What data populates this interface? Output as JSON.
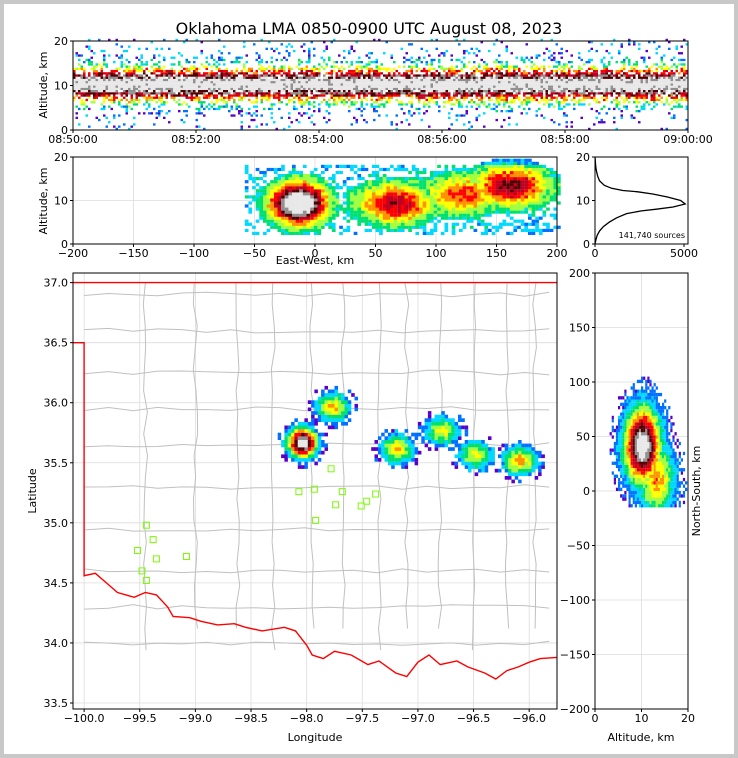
{
  "figure": {
    "title": "Oklahoma LMA 0850-0900 UTC August 08, 2023"
  },
  "colors": {
    "density_ramp": [
      "#5a00c8",
      "#0070ff",
      "#00d8ff",
      "#00e070",
      "#a0ff40",
      "#ffff00",
      "#ff9000",
      "#ff0000",
      "#c00020",
      "#500000",
      "#909090",
      "#e8e8e8"
    ],
    "state_border": "#ff0000",
    "county_lines": "#c0c0c0",
    "station_marker": "#7cfc00"
  },
  "chart_data": [
    {
      "id": "time-height",
      "type": "heatmap",
      "xlabel": "",
      "ylabel": "Altitude, km",
      "xlim": [
        "08:50:00",
        "09:00:00"
      ],
      "ylim": [
        0,
        20
      ],
      "x_ticks": [
        "08:50:00",
        "08:52:00",
        "08:54:00",
        "08:56:00",
        "08:58:00",
        "09:00:00"
      ],
      "y_ticks": [
        "0",
        "10",
        "20"
      ],
      "peak_altitude_km": 10
    },
    {
      "id": "ew-height",
      "type": "heatmap",
      "xlabel": "East-West, km",
      "ylabel": "Altitude, km",
      "xlim": [
        -200,
        200
      ],
      "ylim": [
        0,
        20
      ],
      "x_ticks": [
        "−200",
        "−150",
        "−100",
        "−50",
        "0",
        "50",
        "100",
        "150",
        "200"
      ],
      "y_ticks": [
        "0",
        "10",
        "20"
      ],
      "grid": true,
      "cores": [
        {
          "x_km": -15,
          "alt_km": 9,
          "intensity": 1.0
        },
        {
          "x_km": 65,
          "alt_km": 9,
          "intensity": 0.55
        },
        {
          "x_km": 120,
          "alt_km": 11,
          "intensity": 0.45
        },
        {
          "x_km": 160,
          "alt_km": 13,
          "intensity": 0.6
        }
      ]
    },
    {
      "id": "altitude-histogram",
      "type": "line",
      "xlim": [
        0,
        5000
      ],
      "ylim": [
        0,
        20
      ],
      "x_ticks": [
        "0",
        "5000"
      ],
      "y_ticks": [
        "0",
        "10",
        "20"
      ],
      "annotation": "141,740 sources",
      "points": [
        [
          0,
          0
        ],
        [
          50,
          1
        ],
        [
          120,
          2
        ],
        [
          250,
          3
        ],
        [
          450,
          4
        ],
        [
          750,
          5
        ],
        [
          1150,
          6
        ],
        [
          1700,
          7
        ],
        [
          2500,
          7.6
        ],
        [
          3300,
          8
        ],
        [
          4200,
          8.5
        ],
        [
          4850,
          9.2
        ],
        [
          4600,
          10
        ],
        [
          3900,
          10.8
        ],
        [
          3100,
          11.5
        ],
        [
          2300,
          12
        ],
        [
          1500,
          12.3
        ],
        [
          900,
          12.8
        ],
        [
          500,
          13.5
        ],
        [
          250,
          14.5
        ],
        [
          150,
          15.5
        ],
        [
          90,
          16.5
        ],
        [
          50,
          17.5
        ],
        [
          25,
          18.5
        ],
        [
          10,
          19.5
        ],
        [
          0,
          20
        ]
      ]
    },
    {
      "id": "plan-view",
      "type": "heatmap",
      "xlabel": "Longitude",
      "ylabel": "Latitude",
      "xlim": [
        -100.1,
        -95.75
      ],
      "ylim": [
        33.45,
        37.08
      ],
      "x_ticks": [
        "−100.0",
        "−99.5",
        "−99.0",
        "−98.5",
        "−98.0",
        "−97.5",
        "−97.0",
        "−96.5",
        "−96.0"
      ],
      "y_ticks": [
        "33.5",
        "34.0",
        "34.5",
        "35.0",
        "35.5",
        "36.0",
        "36.5",
        "37.0"
      ],
      "grid": true,
      "cores": [
        {
          "lon": -98.05,
          "lat": 35.65,
          "intensity": 1.0
        },
        {
          "lon": -97.78,
          "lat": 35.95,
          "intensity": 0.45
        },
        {
          "lon": -97.2,
          "lat": 35.6,
          "intensity": 0.45
        },
        {
          "lon": -96.8,
          "lat": 35.75,
          "intensity": 0.4
        },
        {
          "lon": -96.5,
          "lat": 35.55,
          "intensity": 0.4
        },
        {
          "lon": -96.1,
          "lat": 35.5,
          "intensity": 0.5
        }
      ],
      "stations": [
        {
          "lon": -99.44,
          "lat": 34.98
        },
        {
          "lon": -99.38,
          "lat": 34.86
        },
        {
          "lon": -99.52,
          "lat": 34.77
        },
        {
          "lon": -99.35,
          "lat": 34.7
        },
        {
          "lon": -99.48,
          "lat": 34.6
        },
        {
          "lon": -99.44,
          "lat": 34.52
        },
        {
          "lon": -99.08,
          "lat": 34.72
        },
        {
          "lon": -98.07,
          "lat": 35.26
        },
        {
          "lon": -97.93,
          "lat": 35.28
        },
        {
          "lon": -97.92,
          "lat": 35.02
        },
        {
          "lon": -97.78,
          "lat": 35.45
        },
        {
          "lon": -97.74,
          "lat": 35.15
        },
        {
          "lon": -97.68,
          "lat": 35.26
        },
        {
          "lon": -97.51,
          "lat": 35.14
        },
        {
          "lon": -97.46,
          "lat": 35.18
        },
        {
          "lon": -97.38,
          "lat": 35.24
        }
      ]
    },
    {
      "id": "ns-height",
      "type": "heatmap",
      "xlabel": "Altitude, km",
      "ylabel": "North-South, km",
      "xlim": [
        0,
        20
      ],
      "ylim": [
        -200,
        200
      ],
      "x_ticks": [
        "0",
        "10",
        "20"
      ],
      "y_ticks": [
        "200",
        "150",
        "100",
        "50",
        "0",
        "−50",
        "−100",
        "−150",
        "−200"
      ],
      "grid": true,
      "cores": [
        {
          "alt_km": 10,
          "y_km": 40,
          "intensity": 1.0
        },
        {
          "alt_km": 13,
          "y_km": 10,
          "intensity": 0.5
        }
      ]
    }
  ]
}
